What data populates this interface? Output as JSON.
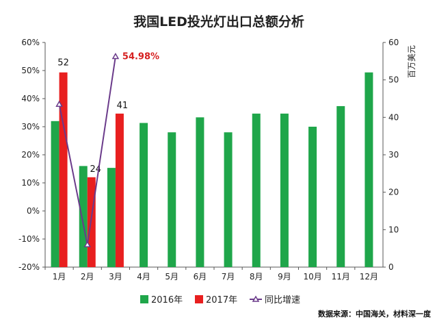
{
  "chart_data": {
    "type": "bar",
    "title": "我国LED投光灯出口总额分析",
    "categories": [
      "1月",
      "2月",
      "3月",
      "4月",
      "5月",
      "6月",
      "7月",
      "8月",
      "9月",
      "10月",
      "11月",
      "12月"
    ],
    "series": [
      {
        "name": "2016年",
        "axis": "right",
        "color": "#1fa64a",
        "values": [
          39,
          27,
          26.5,
          38.5,
          36,
          40,
          36,
          41,
          41,
          37.5,
          43,
          52
        ]
      },
      {
        "name": "2017年",
        "axis": "right",
        "color": "#e81f1f",
        "values": [
          52,
          24,
          41,
          null,
          null,
          null,
          null,
          null,
          null,
          null,
          null,
          null
        ],
        "labels": [
          "52",
          "24",
          "41"
        ]
      },
      {
        "name": "同比增速",
        "axis": "left",
        "type": "line",
        "color": "#6a3a8a",
        "values": [
          38,
          -12,
          55,
          null,
          null,
          null,
          null,
          null,
          null,
          null,
          null,
          null
        ],
        "highlight_label": "54.98%"
      }
    ],
    "y_left": {
      "ylim": [
        -20,
        60
      ],
      "ticks": [
        "-20%",
        "-10%",
        "0%",
        "10%",
        "20%",
        "30%",
        "40%",
        "50%",
        "60%"
      ]
    },
    "y_right": {
      "ylim": [
        0,
        60
      ],
      "ticks": [
        "0",
        "10",
        "20",
        "30",
        "40",
        "50",
        "60"
      ],
      "label": "百万美元"
    },
    "legend_position": "bottom",
    "grid": false,
    "source_note": "数据来源：中国海关，材料深一度"
  }
}
